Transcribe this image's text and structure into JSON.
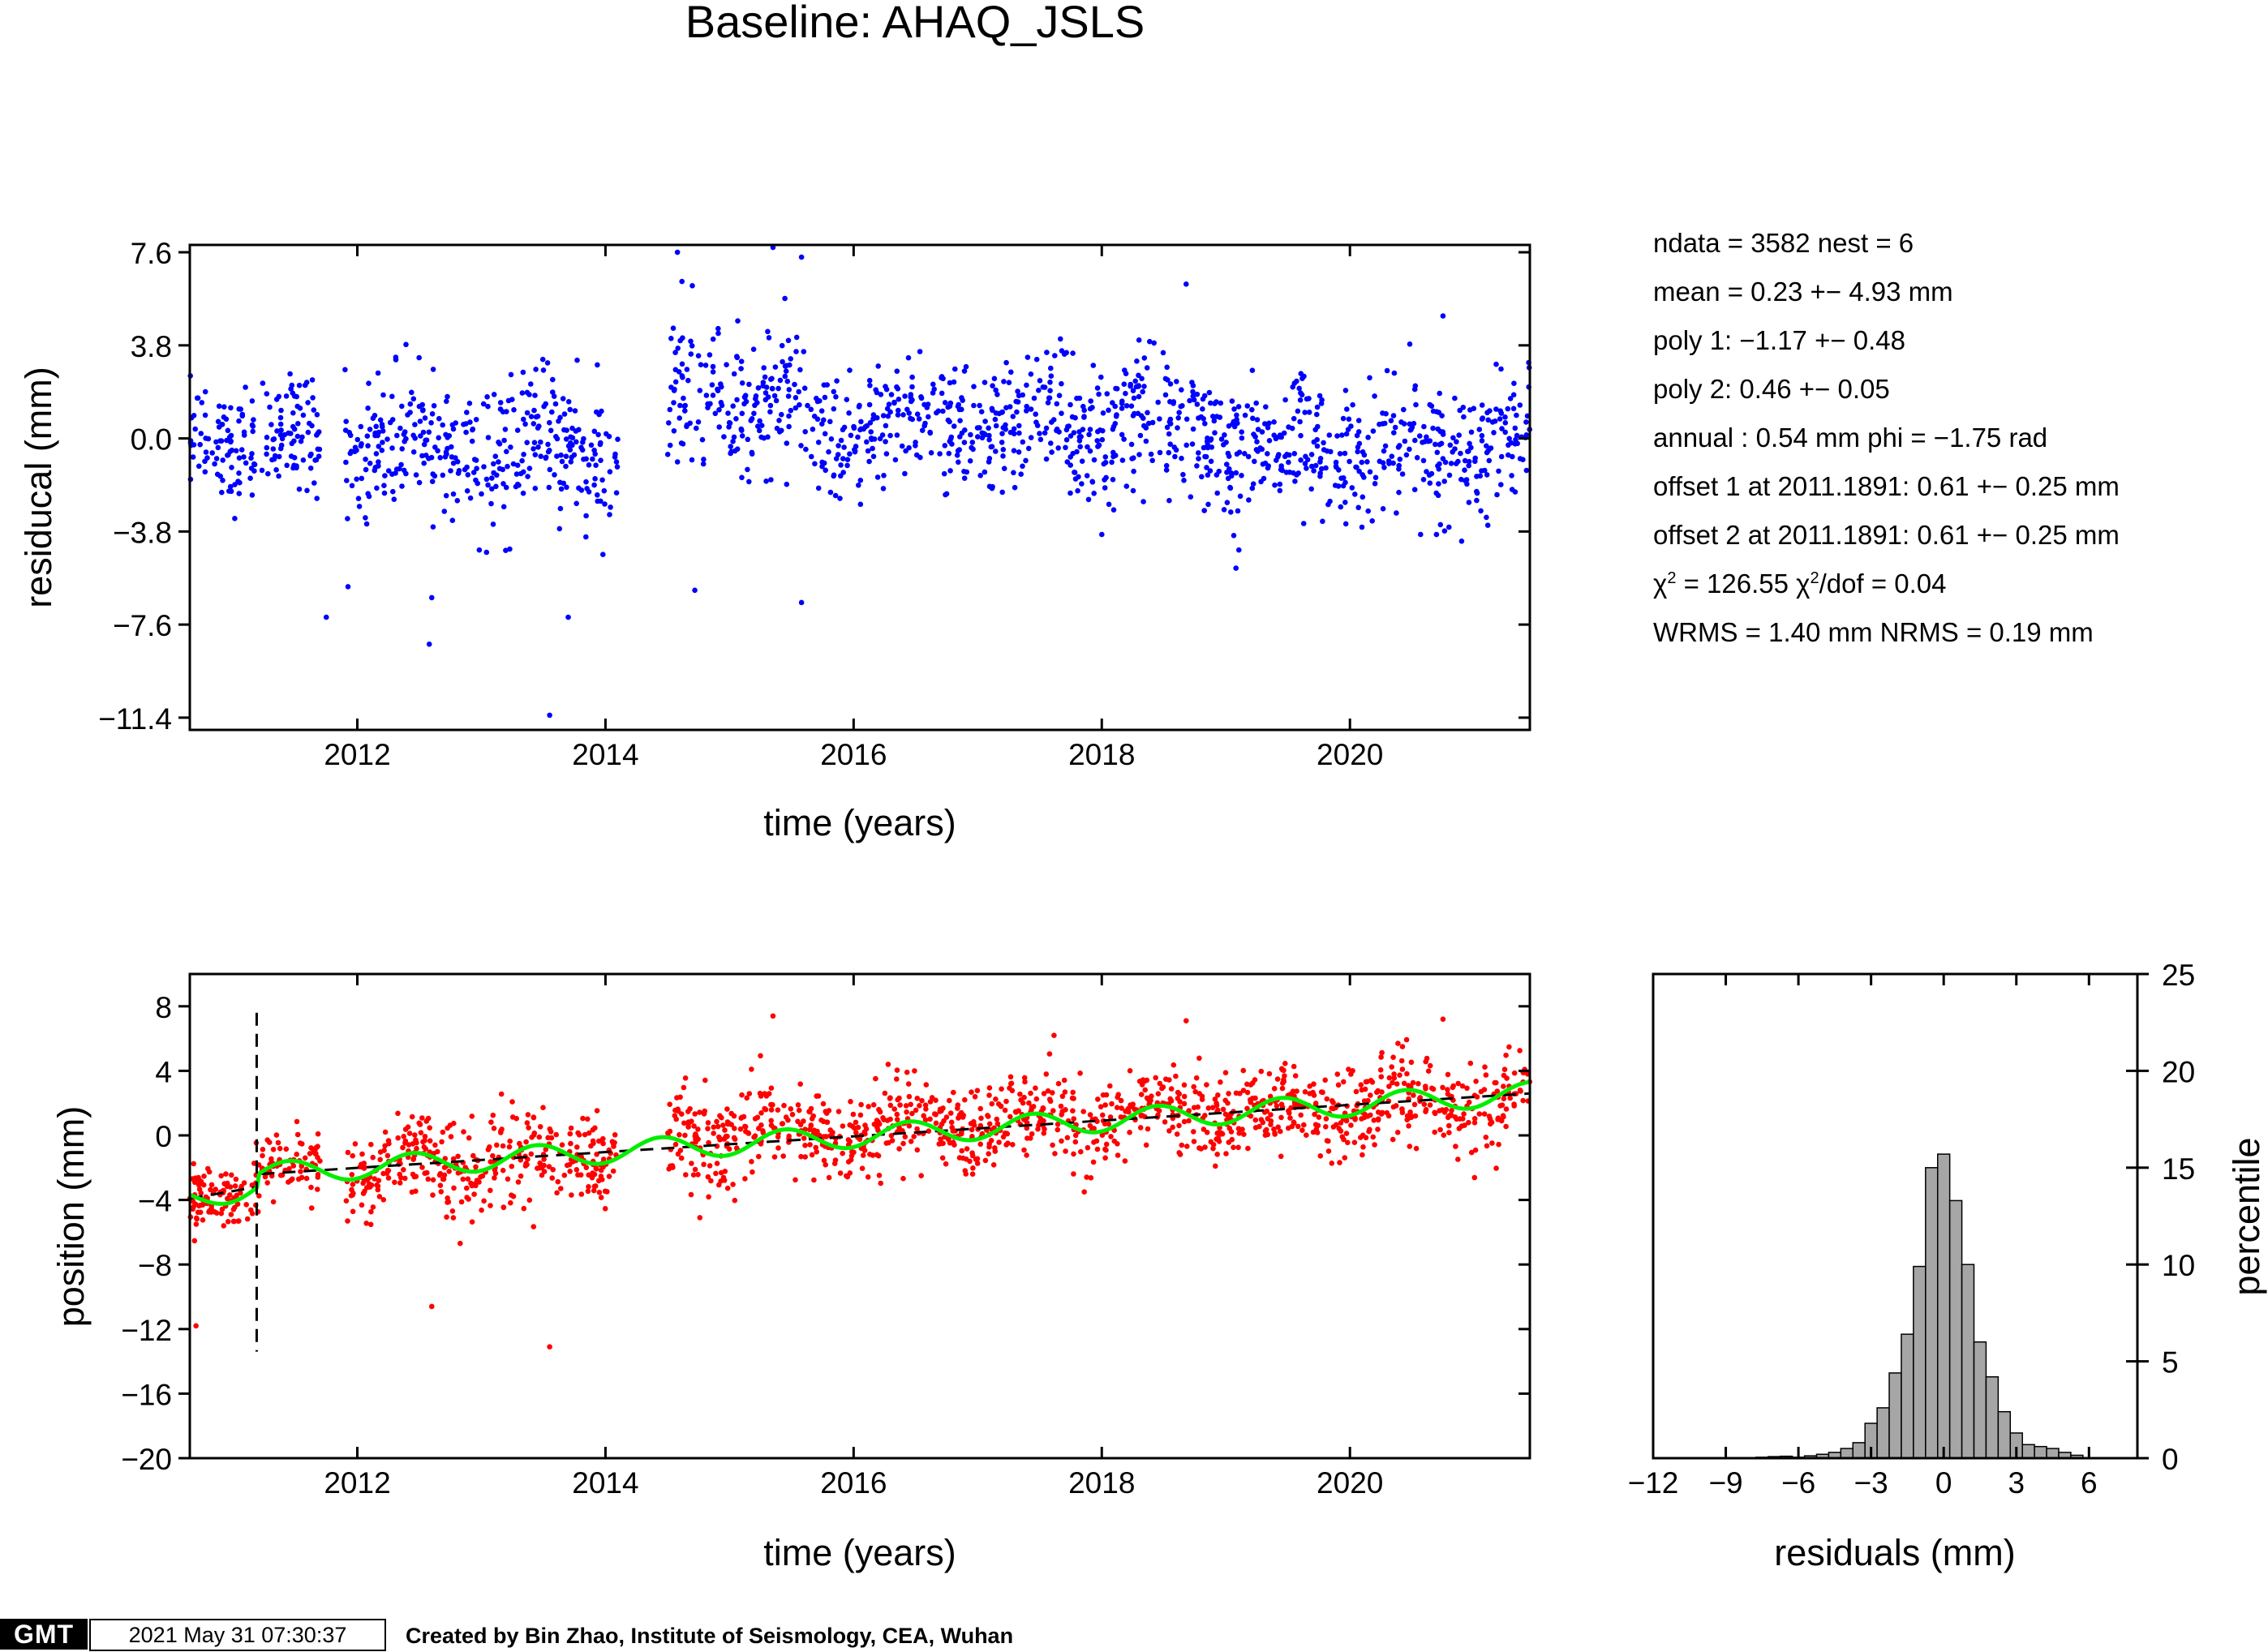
{
  "title": "Baseline: AHAQ_JSLS",
  "stats": {
    "line1": "ndata = 3582  nest = 6",
    "line2": "mean = 0.23 +− 4.93 mm",
    "line3": "poly 1: −1.17 +− 0.48",
    "line4": "poly 2: 0.46 +− 0.05",
    "line5": "annual : 0.54 mm  phi = −1.75 rad",
    "line6": "offset 1 at 2011.1891: 0.61 +− 0.25 mm",
    "line7": "offset 2 at 2011.1891: 0.61 +− 0.25 mm",
    "line8_chi": "χ",
    "line8_sup": "2",
    "line8_mid": " = 126.55  χ",
    "line8_sup2": "2",
    "line8_end": "/dof = 0.04",
    "line9": "WRMS = 1.40 mm  NRMS = 0.19 mm"
  },
  "footer": {
    "logo": "GMT",
    "timestamp": "2021 May 31 07:30:37",
    "credit": "Created by Bin Zhao, Institute of Seismology, CEA, Wuhan"
  },
  "chart_data": [
    {
      "type": "scatter",
      "name": "residuals",
      "xlabel": "time (years)",
      "ylabel": "residucal (mm)",
      "xlim": [
        2010.65,
        2021.45
      ],
      "ylim": [
        -11.9,
        7.9
      ],
      "xticks": [
        2012,
        2014,
        2016,
        2018,
        2020
      ],
      "xtick_labels": [
        "2012",
        "2014",
        "2016",
        "2018",
        "2020"
      ],
      "yticks": [
        7.6,
        3.8,
        0.0,
        -3.8,
        -7.6,
        -11.4
      ],
      "ytick_labels": [
        "7.6",
        "3.8",
        "0.0",
        "−3.8",
        "−7.6",
        "−11.4"
      ],
      "point_color": "#0000ff",
      "n_points": 3582,
      "segments": [
        {
          "x_range": [
            2010.65,
            2011.7
          ],
          "mean": 0.0,
          "sd": 1.5
        },
        {
          "x_range": [
            2011.9,
            2014.1
          ],
          "mean": -0.5,
          "sd": 1.9
        },
        {
          "x_range": [
            2014.5,
            2015.6
          ],
          "mean": 1.5,
          "sd": 2.0
        },
        {
          "x_range": [
            2015.6,
            2019.0
          ],
          "mean": 0.5,
          "sd": 1.8
        },
        {
          "x_range": [
            2019.0,
            2021.45
          ],
          "mean": -0.4,
          "sd": 1.8
        }
      ],
      "outliers": [
        {
          "x": 2014.58,
          "y": 7.6
        },
        {
          "x": 2015.35,
          "y": 7.8
        },
        {
          "x": 2015.58,
          "y": 7.4
        },
        {
          "x": 2012.58,
          "y": -8.4
        },
        {
          "x": 2013.55,
          "y": -11.3
        },
        {
          "x": 2012.6,
          "y": -6.5
        },
        {
          "x": 2011.75,
          "y": -7.3
        },
        {
          "x": 2013.7,
          "y": -7.3
        },
        {
          "x": 2015.58,
          "y": -6.7
        },
        {
          "x": 2014.72,
          "y": -6.2
        },
        {
          "x": 2018.68,
          "y": 6.3
        },
        {
          "x": 2020.75,
          "y": 5.0
        }
      ]
    },
    {
      "type": "scatter",
      "name": "position",
      "xlabel": "time (years)",
      "ylabel": "position (mm)",
      "xlim": [
        2010.65,
        2021.45
      ],
      "ylim": [
        -20,
        10
      ],
      "xticks": [
        2012,
        2014,
        2016,
        2018,
        2020
      ],
      "xtick_labels": [
        "2012",
        "2014",
        "2016",
        "2018",
        "2020"
      ],
      "yticks": [
        8,
        4,
        0,
        -4,
        -8,
        -12,
        -16,
        -20
      ],
      "ytick_labels": [
        "8",
        "4",
        "0",
        "−4",
        "−8",
        "−12",
        "−16",
        "−20"
      ],
      "point_color": "#ff0000",
      "trend_color": "#000000",
      "model_color": "#00ee00",
      "offset_epoch": 2011.1891,
      "trend": [
        {
          "x": 2010.65,
          "y": -3.9
        },
        {
          "x": 2011.19,
          "y": -3.2
        },
        {
          "x": 2011.2,
          "y": -2.4
        },
        {
          "x": 2021.45,
          "y": 2.6
        }
      ],
      "model_annual_amplitude": 0.54,
      "model_phase_rad": -1.75,
      "outliers": [
        {
          "x": 2010.7,
          "y": -11.8
        },
        {
          "x": 2013.55,
          "y": -13.1
        },
        {
          "x": 2012.6,
          "y": -10.6
        },
        {
          "x": 2015.35,
          "y": 7.4
        },
        {
          "x": 2020.75,
          "y": 7.2
        },
        {
          "x": 2018.68,
          "y": 7.1
        }
      ]
    },
    {
      "type": "bar",
      "name": "histogram",
      "xlabel": "residuals (mm)",
      "ylabel": "percentile",
      "xlim": [
        -12,
        8
      ],
      "ylim": [
        0,
        25
      ],
      "xticks": [
        -12,
        -9,
        -6,
        -3,
        0,
        3,
        6
      ],
      "xtick_labels": [
        "−12",
        "−9",
        "−6",
        "−3",
        "0",
        "3",
        "6"
      ],
      "yticks": [
        0,
        5,
        10,
        15,
        20,
        25
      ],
      "ytick_labels": [
        "0",
        "5",
        "10",
        "15",
        "20",
        "25"
      ],
      "bar_color": "#a6a6a6",
      "bin_width": 0.5,
      "bins": [
        {
          "x": -7.5,
          "value": 0.05
        },
        {
          "x": -7.0,
          "value": 0.08
        },
        {
          "x": -6.5,
          "value": 0.1
        },
        {
          "x": -6.0,
          "value": 0.05
        },
        {
          "x": -5.5,
          "value": 0.12
        },
        {
          "x": -5.0,
          "value": 0.2
        },
        {
          "x": -4.5,
          "value": 0.3
        },
        {
          "x": -4.0,
          "value": 0.5
        },
        {
          "x": -3.5,
          "value": 0.8
        },
        {
          "x": -3.0,
          "value": 1.8
        },
        {
          "x": -2.5,
          "value": 2.6
        },
        {
          "x": -2.0,
          "value": 4.4
        },
        {
          "x": -1.5,
          "value": 6.4
        },
        {
          "x": -1.0,
          "value": 9.9
        },
        {
          "x": -0.5,
          "value": 15.0
        },
        {
          "x": 0.0,
          "value": 15.7
        },
        {
          "x": 0.5,
          "value": 13.3
        },
        {
          "x": 1.0,
          "value": 10.0
        },
        {
          "x": 1.5,
          "value": 6.0
        },
        {
          "x": 2.0,
          "value": 4.2
        },
        {
          "x": 2.5,
          "value": 2.4
        },
        {
          "x": 3.0,
          "value": 1.3
        },
        {
          "x": 3.5,
          "value": 0.7
        },
        {
          "x": 4.0,
          "value": 0.6
        },
        {
          "x": 4.5,
          "value": 0.5
        },
        {
          "x": 5.0,
          "value": 0.3
        },
        {
          "x": 5.5,
          "value": 0.15
        }
      ]
    }
  ]
}
